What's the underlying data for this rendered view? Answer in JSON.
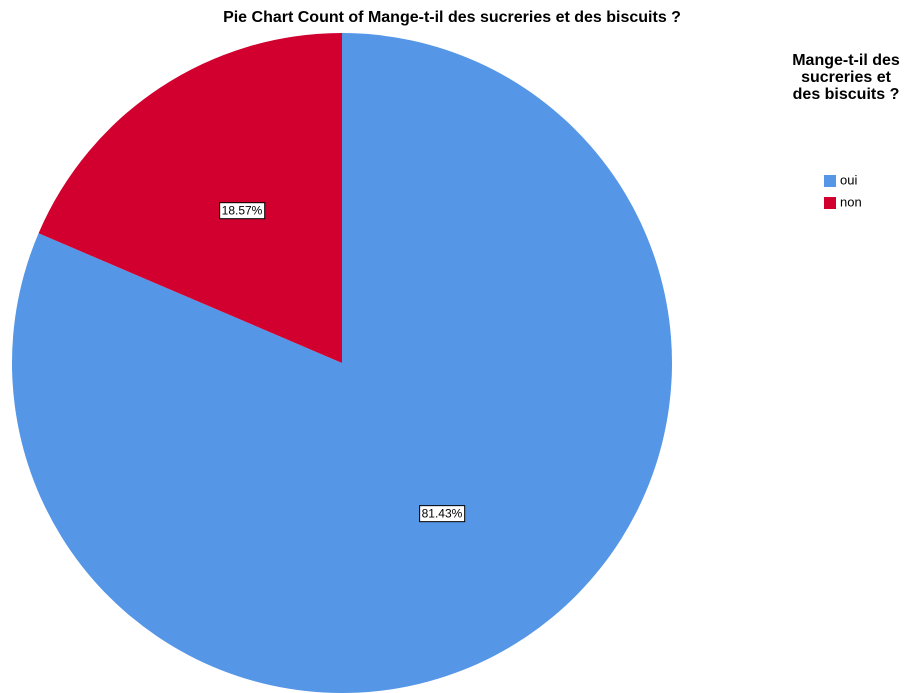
{
  "chart_data": {
    "type": "pie",
    "title": "Pie Chart Count of Mange-t-il des sucreries et des biscuits ?",
    "legend_title": "Mange-t-il des sucreries et des biscuits ?",
    "categories": [
      "oui",
      "non"
    ],
    "values": [
      81.43,
      18.57
    ],
    "value_labels": [
      "81.43%",
      "18.57%"
    ],
    "colors": [
      "#5596e6",
      "#d1002f"
    ],
    "legend": "right"
  }
}
